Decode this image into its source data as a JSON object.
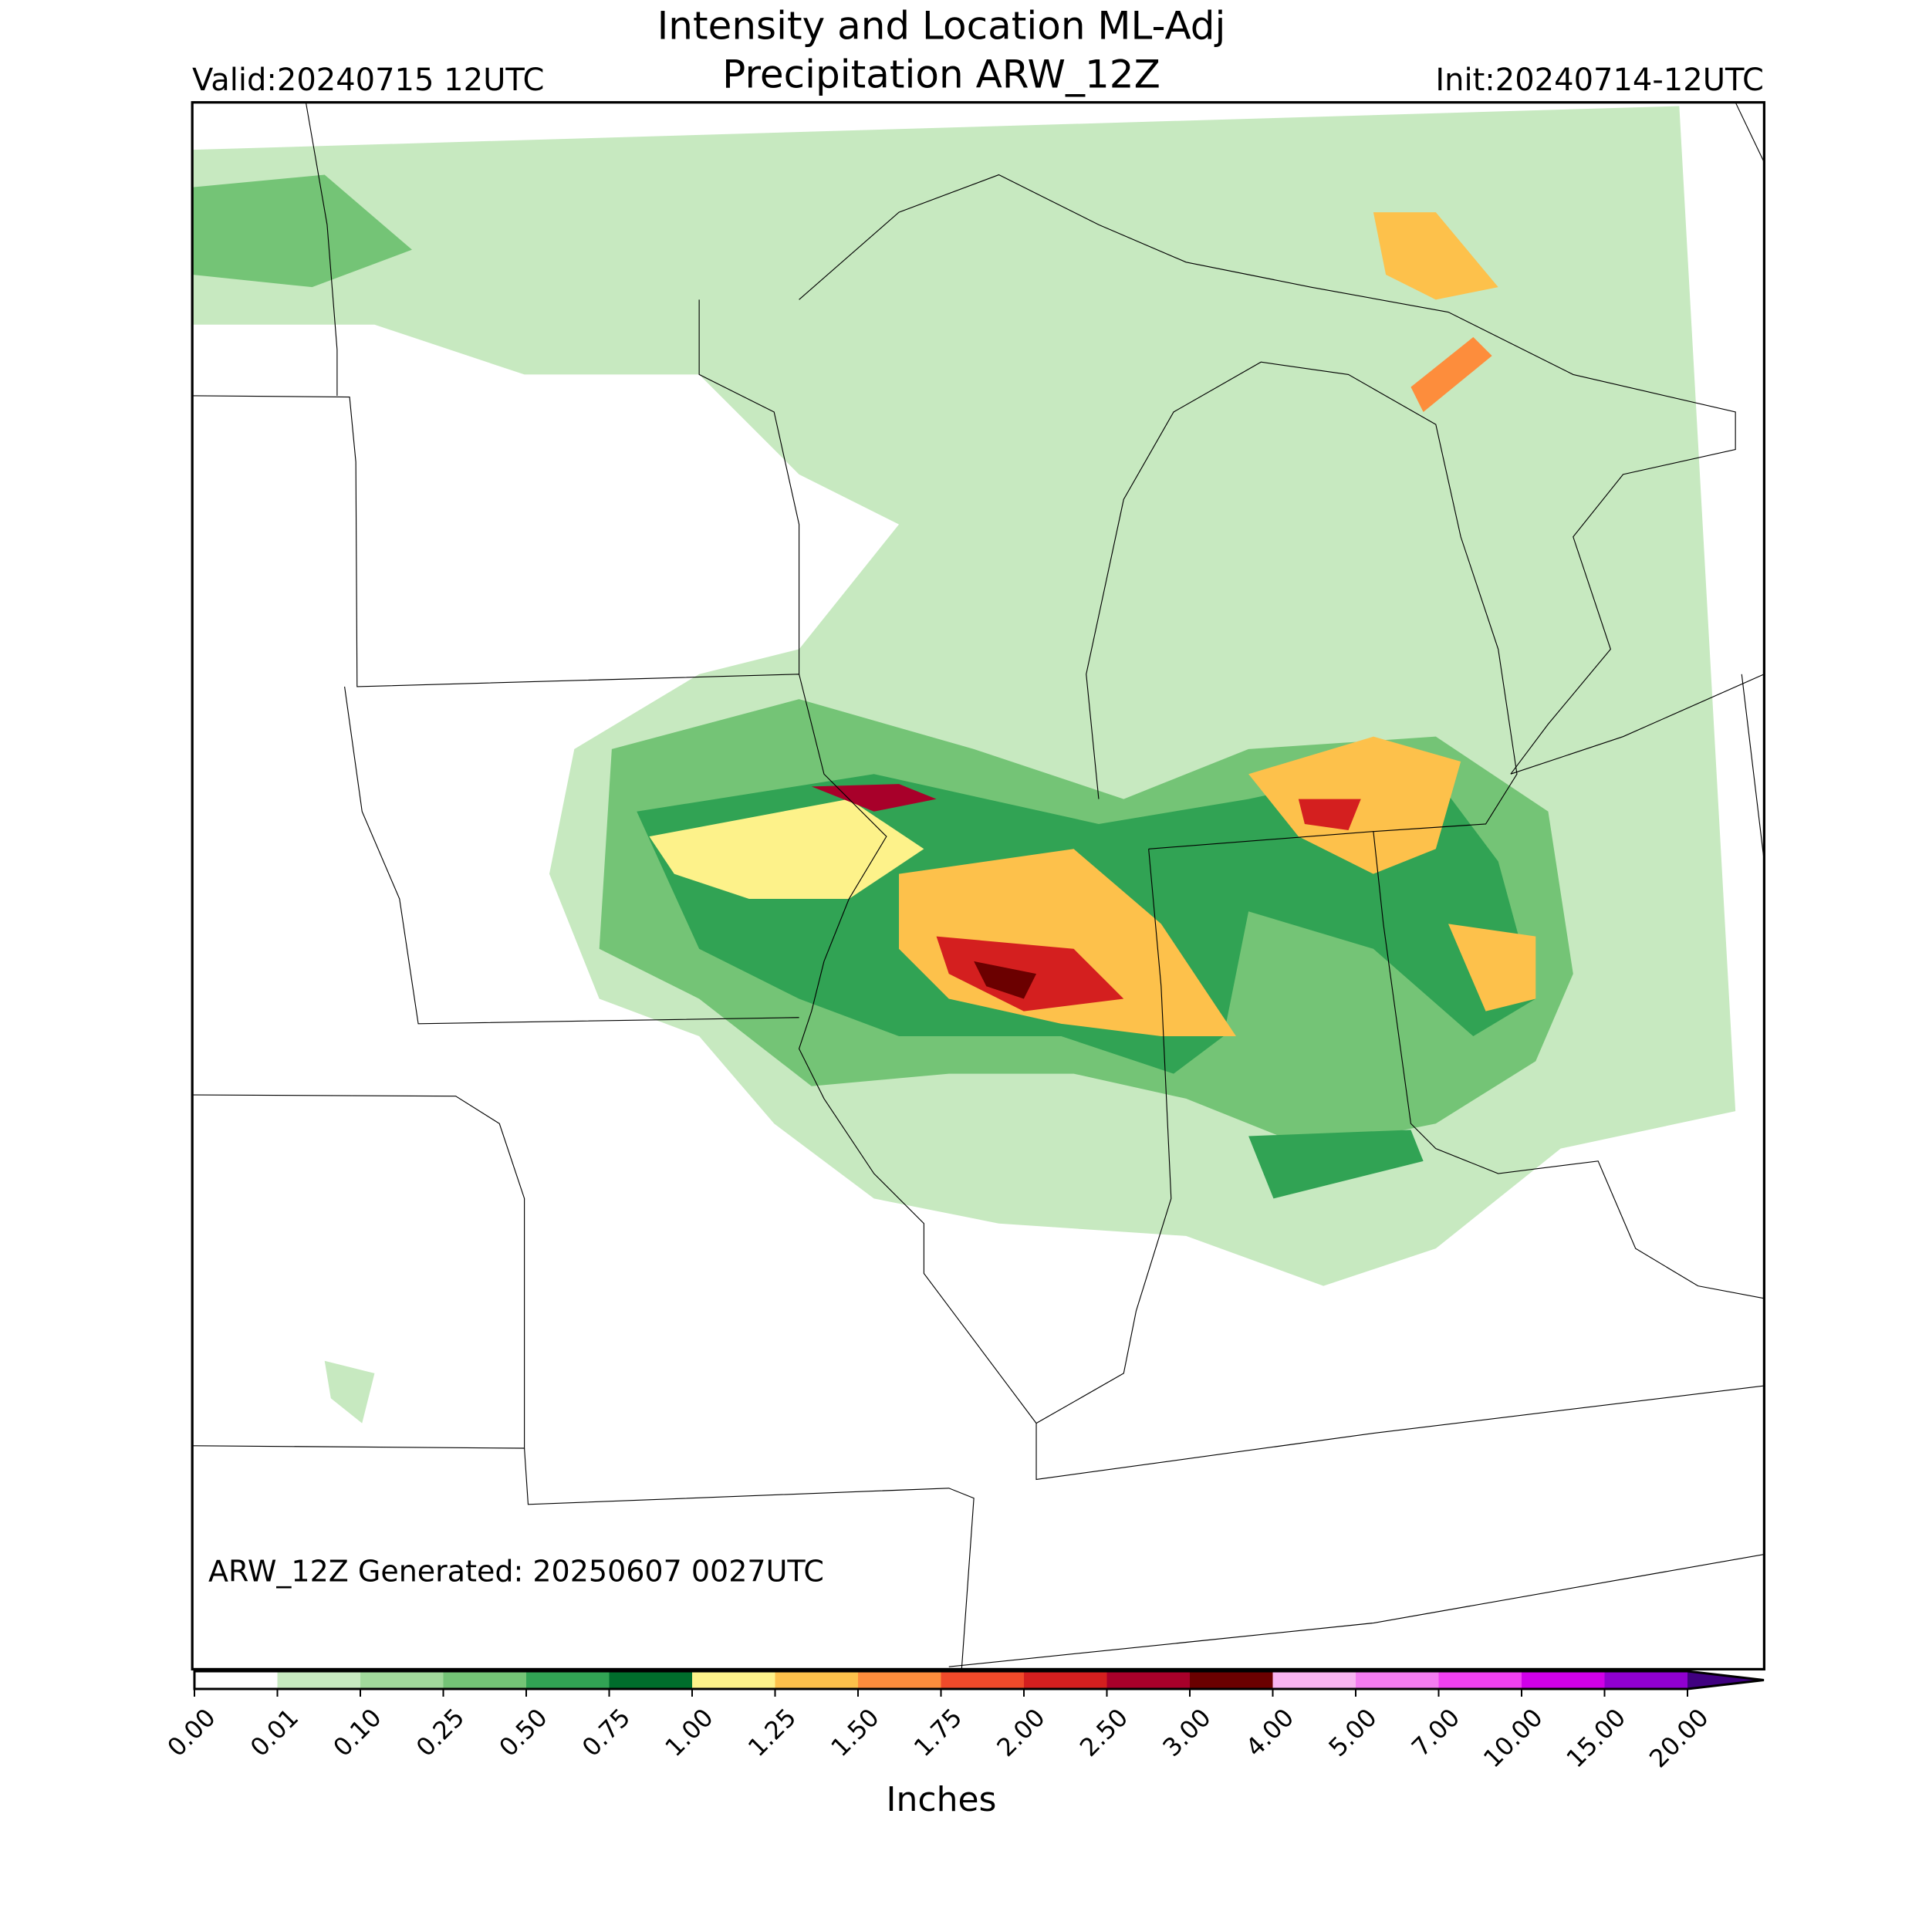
{
  "title": [
    "Intensity and Location ML-Adj",
    "Precipitation ARW_12Z"
  ],
  "valid": "Valid:20240715 12UTC",
  "init": "Init:20240714-12UTC",
  "generated": "ARW_12Z Generated: 20250607 0027UTC",
  "colorbar": {
    "label": "Inches",
    "boundaries": [
      {
        "value": 0,
        "label": "0.00"
      },
      {
        "value": 0.01,
        "label": "0.01"
      },
      {
        "value": 0.1,
        "label": "0.10"
      },
      {
        "value": 0.25,
        "label": "0.25"
      },
      {
        "value": 0.5,
        "label": "0.50"
      },
      {
        "value": 0.75,
        "label": "0.75"
      },
      {
        "value": 1,
        "label": "1.00"
      },
      {
        "value": 1.25,
        "label": "1.25"
      },
      {
        "value": 1.5,
        "label": "1.50"
      },
      {
        "value": 1.75,
        "label": "1.75"
      },
      {
        "value": 2,
        "label": "2.00"
      },
      {
        "value": 2.5,
        "label": "2.50"
      },
      {
        "value": 3,
        "label": "3.00"
      },
      {
        "value": 4,
        "label": "4.00"
      },
      {
        "value": 5,
        "label": "5.00"
      },
      {
        "value": 7,
        "label": "7.00"
      },
      {
        "value": 10,
        "label": "10.00"
      },
      {
        "value": 15,
        "label": "15.00"
      },
      {
        "value": 20,
        "label": "20.00"
      }
    ],
    "colors": [
      "#ffffff",
      "#c7e9c0",
      "#a1d99b",
      "#74c476",
      "#31a354",
      "#006d2c",
      "#fdf28a",
      "#fdc14b",
      "#fd8d3c",
      "#f04a2a",
      "#d41f1f",
      "#a8002a",
      "#6b0000",
      "#f8b4f0",
      "#f47cf0",
      "#f040f0",
      "#d000e8",
      "#9000d0"
    ],
    "extend_color": "#400080"
  }
}
